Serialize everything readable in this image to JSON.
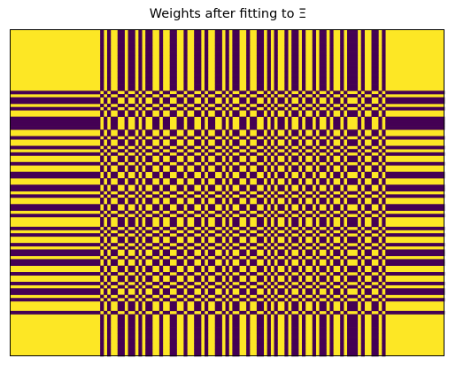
{
  "chart_data": {
    "type": "heatmap",
    "title": "Weights after fitting to Ξ",
    "xlabel": "",
    "ylabel": "",
    "colormap": "viridis",
    "colors": {
      "high": "#fde725",
      "low": "#440154",
      "frame": "#000000",
      "background": "#ffffff"
    },
    "value_range": [
      -1,
      1
    ],
    "axes_visible": false,
    "column_signs": [
      1,
      1,
      1,
      1,
      1,
      1,
      1,
      1,
      1,
      1,
      1,
      1,
      1,
      1,
      1,
      1,
      1,
      1,
      1,
      1,
      1,
      1,
      1,
      1,
      1,
      1,
      -1,
      1,
      -1,
      1,
      1,
      -1,
      -1,
      1,
      -1,
      -1,
      1,
      -1,
      1,
      -1,
      -1,
      1,
      1,
      -1,
      1,
      1,
      -1,
      -1,
      1,
      1,
      -1,
      1,
      1,
      -1,
      -1,
      1,
      -1,
      1,
      1,
      -1,
      -1,
      1,
      -1,
      1,
      -1,
      -1,
      1,
      1,
      -1,
      1,
      1,
      -1,
      -1,
      1,
      -1,
      1,
      -1,
      1,
      1,
      -1,
      1,
      -1,
      -1,
      1,
      -1,
      1,
      1,
      -1,
      1,
      -1,
      -1,
      1,
      -1,
      1,
      1,
      -1,
      1,
      -1,
      -1,
      -1,
      1,
      -1,
      1,
      1,
      -1,
      -1,
      1,
      -1,
      1,
      1,
      1,
      1,
      1,
      1,
      1,
      1,
      1,
      1,
      1,
      1,
      1,
      1,
      1,
      1,
      1
    ],
    "row_signs": [
      1,
      1,
      1,
      1,
      1,
      1,
      1,
      1,
      1,
      1,
      1,
      1,
      1,
      1,
      1,
      1,
      1,
      1,
      1,
      -1,
      1,
      -1,
      -1,
      1,
      -1,
      1,
      1,
      -1,
      -1,
      -1,
      -1,
      1,
      1,
      -1,
      1,
      1,
      -1,
      1,
      -1,
      1,
      1,
      -1,
      1,
      1,
      -1,
      -1,
      1,
      1,
      -1,
      -1,
      1,
      -1,
      1,
      1,
      -1,
      -1,
      1,
      -1,
      1,
      1,
      1,
      -1,
      1,
      -1,
      1,
      1,
      -1,
      1,
      -1,
      -1,
      1,
      -1,
      -1,
      1,
      1,
      -1,
      1,
      1,
      -1,
      1,
      -1,
      -1,
      1,
      -1,
      1,
      1,
      1,
      -1,
      1,
      1,
      1,
      1,
      1,
      1,
      1,
      1,
      1,
      1,
      1,
      1,
      1
    ]
  }
}
